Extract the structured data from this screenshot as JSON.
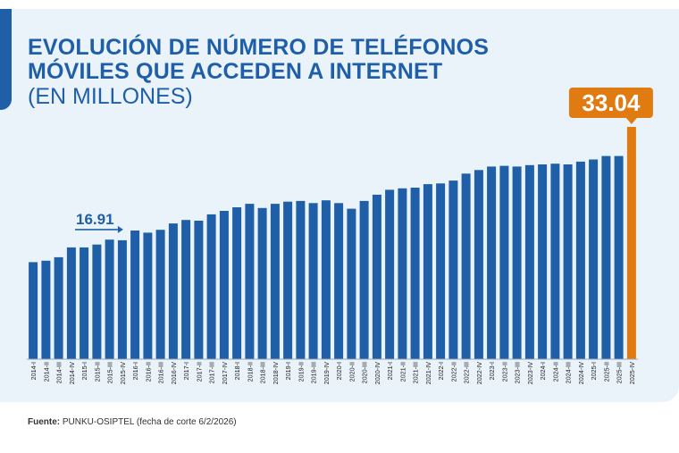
{
  "title": "EVOLUCIÓN DE NÚMERO DE TELÉFONOS MÓVILES QUE ACCEDEN A INTERNET",
  "subtitle": "(EN MILLONES)",
  "source_label": "Fuente:",
  "source_text": "PUNKU-OSIPTEL (fecha de corte 6/2/2026)",
  "colors": {
    "bar": "#1f5fa8",
    "highlight": "#e07b12",
    "background": "#eaf2fa",
    "title": "#1f5fa8"
  },
  "chart_data": {
    "type": "bar",
    "categories": [
      "2014-I",
      "2014-II",
      "2014-III",
      "2014-IV",
      "2015-I",
      "2015-II",
      "2015-III",
      "2015-IV",
      "2016-I",
      "2016-II",
      "2016-III",
      "2016-IV",
      "2017-I",
      "2017-II",
      "2017-III",
      "2017-IV",
      "2018-I",
      "2018-II",
      "2018-III",
      "2018-IV",
      "2019-I",
      "2019-II",
      "2019-III",
      "2019-IV",
      "2020-I",
      "2020-II",
      "2020-III",
      "2020-IV",
      "2021-I",
      "2021-II",
      "2021-III",
      "2021-IV",
      "2022-I",
      "2022-II",
      "2022-III",
      "2022-IV",
      "2023-I",
      "2023-II",
      "2023-III",
      "2023-IV",
      "2024-I",
      "2024-II",
      "2024-III",
      "2024-IV",
      "2025-I",
      "2025-II",
      "2025-III",
      "2025-IV"
    ],
    "values": [
      13.8,
      14.0,
      14.5,
      15.9,
      15.9,
      16.3,
      17.0,
      16.91,
      18.3,
      18.0,
      18.4,
      19.3,
      19.8,
      19.7,
      20.6,
      21.1,
      21.6,
      22.1,
      21.5,
      22.1,
      22.4,
      22.5,
      22.2,
      22.6,
      22.2,
      21.4,
      22.5,
      23.4,
      24.1,
      24.3,
      24.4,
      24.9,
      25.0,
      25.4,
      26.4,
      26.9,
      27.4,
      27.5,
      27.4,
      27.6,
      27.7,
      27.8,
      27.7,
      28.1,
      28.4,
      28.9,
      28.9,
      33.04
    ],
    "highlighted_labels": [
      {
        "category": "2015-IV",
        "value": "16.91"
      },
      {
        "category": "2025-IV",
        "value": "33.04"
      }
    ],
    "ylim": [
      0,
      33.04
    ]
  }
}
